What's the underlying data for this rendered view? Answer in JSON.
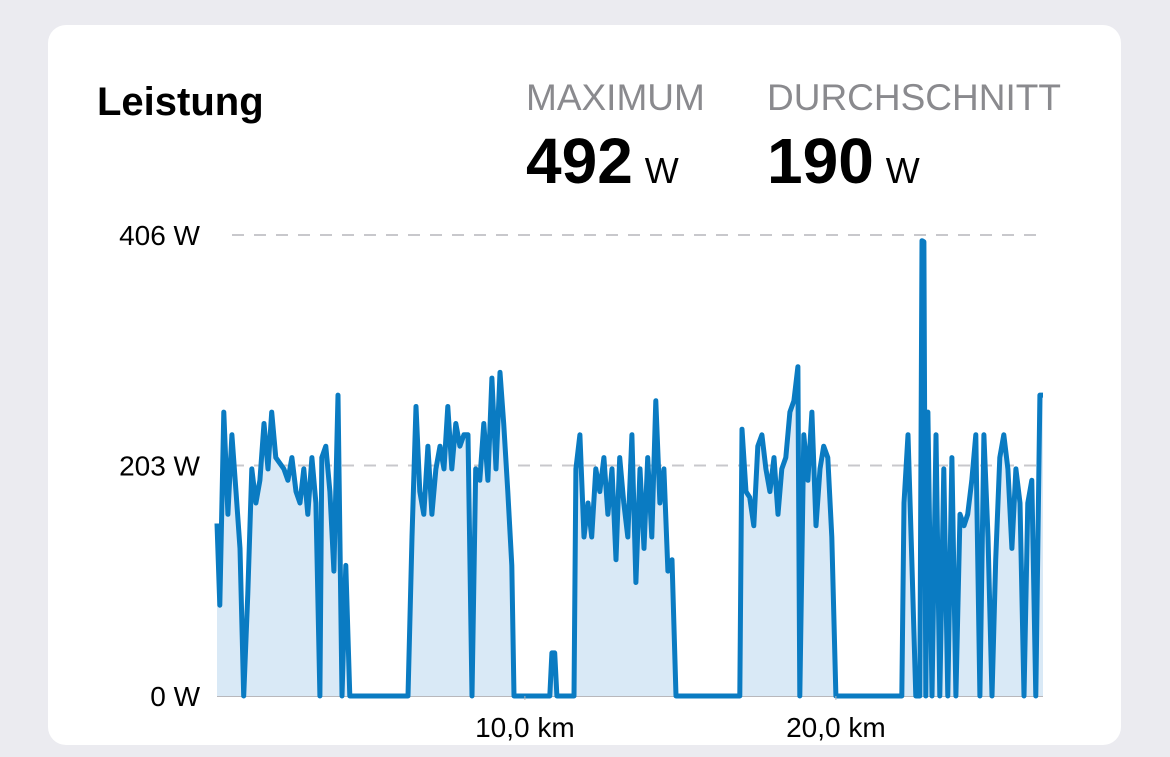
{
  "chart_data": {
    "type": "area",
    "title": "Leistung",
    "summary": [
      {
        "label": "MAXIMUM",
        "value": 492,
        "unit": "W"
      },
      {
        "label": "DURCHSCHNITT",
        "value": 190,
        "unit": "W"
      }
    ],
    "x": [
      0.1,
      0.19,
      0.32,
      0.45,
      0.58,
      0.71,
      0.84,
      0.96,
      1.09,
      1.22,
      1.35,
      1.48,
      1.61,
      1.74,
      1.86,
      1.99,
      2.12,
      2.25,
      2.38,
      2.51,
      2.64,
      2.77,
      2.89,
      3.02,
      3.15,
      3.28,
      3.41,
      3.47,
      3.6,
      3.73,
      3.86,
      3.99,
      4.12,
      4.24,
      4.37,
      6.24,
      6.37,
      6.5,
      6.62,
      6.75,
      6.88,
      7.01,
      7.14,
      7.27,
      7.4,
      7.52,
      7.65,
      7.78,
      7.91,
      8.04,
      8.17,
      8.3,
      8.42,
      8.55,
      8.68,
      8.81,
      8.94,
      9.07,
      9.2,
      9.32,
      9.45,
      9.58,
      9.65,
      10.8,
      10.87,
      10.96,
      11.03,
      11.58,
      11.64,
      11.77,
      11.9,
      12.03,
      12.15,
      12.28,
      12.41,
      12.54,
      12.67,
      12.8,
      12.93,
      13.05,
      13.18,
      13.31,
      13.44,
      13.57,
      13.7,
      13.83,
      13.95,
      14.08,
      14.21,
      14.34,
      14.47,
      14.6,
      14.73,
      14.86,
      16.91,
      16.98,
      17.11,
      17.23,
      17.36,
      17.49,
      17.62,
      17.75,
      17.88,
      18.01,
      18.14,
      18.26,
      18.39,
      18.52,
      18.65,
      18.78,
      18.84,
      18.97,
      19.1,
      19.23,
      19.36,
      19.49,
      19.61,
      19.74,
      19.87,
      20.0,
      22.12,
      22.19,
      22.32,
      22.44,
      22.57,
      22.7,
      22.77,
      22.83,
      22.89,
      22.96,
      23.09,
      23.22,
      23.34,
      23.47,
      23.6,
      23.73,
      23.86,
      23.99,
      24.12,
      24.24,
      24.37,
      24.5,
      24.63,
      24.76,
      24.89,
      25.02,
      25.14,
      25.27,
      25.4,
      25.53,
      25.66,
      25.79,
      25.92,
      26.05,
      26.17,
      26.3,
      26.43,
      26.56,
      26.66
    ],
    "series": [
      {
        "color": "#0a7bc2",
        "fill": "#d9e9f6",
        "values": [
          152,
          80,
          250,
          160,
          230,
          180,
          130,
          0,
          90,
          200,
          170,
          190,
          240,
          200,
          250,
          210,
          205,
          200,
          190,
          210,
          180,
          170,
          200,
          160,
          210,
          170,
          0,
          210,
          220,
          180,
          110,
          265,
          0,
          115,
          0,
          0,
          140,
          255,
          180,
          160,
          220,
          160,
          200,
          220,
          200,
          255,
          200,
          240,
          220,
          230,
          230,
          0,
          200,
          190,
          240,
          190,
          280,
          200,
          285,
          240,
          180,
          115,
          0,
          0,
          38,
          38,
          0,
          0,
          200,
          230,
          140,
          170,
          140,
          200,
          180,
          210,
          160,
          200,
          120,
          210,
          170,
          140,
          230,
          100,
          200,
          130,
          210,
          140,
          260,
          170,
          200,
          110,
          120,
          0,
          0,
          235,
          180,
          175,
          150,
          220,
          230,
          200,
          180,
          210,
          160,
          200,
          210,
          250,
          260,
          290,
          0,
          230,
          190,
          250,
          150,
          200,
          220,
          210,
          140,
          0,
          0,
          170,
          230,
          120,
          0,
          0,
          401,
          400,
          0,
          250,
          0,
          230,
          0,
          200,
          0,
          210,
          0,
          160,
          150,
          160,
          190,
          230,
          0,
          230,
          140,
          0,
          120,
          210,
          230,
          200,
          130,
          200,
          170,
          0,
          170,
          190,
          0,
          265,
          265
        ]
      }
    ],
    "xlim": [
      0.1,
      26.66
    ],
    "xticks": [
      {
        "value": 10,
        "label": "10,0 km"
      },
      {
        "value": 20,
        "label": "20,0 km"
      }
    ],
    "ylim": [
      0,
      406
    ],
    "yticks": [
      {
        "value": 0,
        "label": "0 W"
      },
      {
        "value": 203,
        "label": "203 W"
      },
      {
        "value": 406,
        "label": "406 W"
      }
    ],
    "grid": true
  }
}
